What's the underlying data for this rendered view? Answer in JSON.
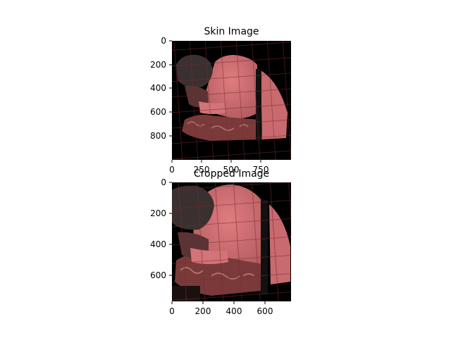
{
  "figure": {
    "subplots": [
      {
        "title": "Skin Image",
        "x_ticks": [
          "0",
          "250",
          "500",
          "750"
        ],
        "y_ticks": [
          "0",
          "200",
          "400",
          "600",
          "800"
        ],
        "content": "photo-mask"
      },
      {
        "title": "Cropped Image",
        "x_ticks": [
          "0",
          "200",
          "400",
          "600"
        ],
        "y_ticks": [
          "0",
          "200",
          "400",
          "600"
        ],
        "content": "photo-crop"
      }
    ],
    "colors": {
      "background": "#000000",
      "skin_pink": "#c86a6e",
      "skin_dark": "#4a2c2c",
      "hair": "#3a3030",
      "fabric": "#7a3a3a"
    }
  }
}
